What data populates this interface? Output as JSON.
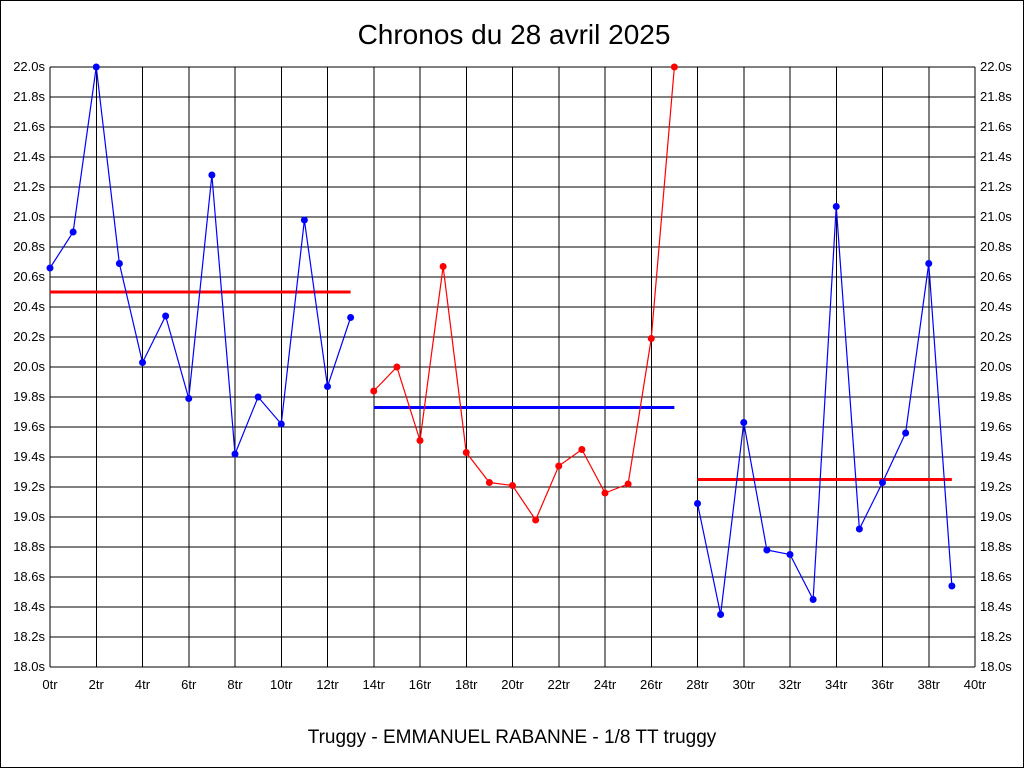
{
  "chart_data": {
    "type": "line",
    "title": "Chronos du 28 avril 2025",
    "subtitle": "Truggy - EMMANUEL RABANNE - 1/8 TT truggy",
    "xlabel": "",
    "ylabel": "",
    "xlim": [
      0,
      40
    ],
    "ylim": [
      18.0,
      22.0
    ],
    "grid": true,
    "x_ticks": [
      "0tr",
      "2tr",
      "4tr",
      "6tr",
      "8tr",
      "10tr",
      "12tr",
      "14tr",
      "16tr",
      "18tr",
      "20tr",
      "22tr",
      "24tr",
      "26tr",
      "28tr",
      "30tr",
      "32tr",
      "34tr",
      "36tr",
      "38tr",
      "40tr"
    ],
    "y_ticks": [
      "18.0s",
      "18.2s",
      "18.4s",
      "18.6s",
      "18.8s",
      "19.0s",
      "19.2s",
      "19.4s",
      "19.6s",
      "19.8s",
      "20.0s",
      "20.2s",
      "20.4s",
      "20.6s",
      "20.8s",
      "21.0s",
      "21.2s",
      "21.4s",
      "21.6s",
      "21.8s",
      "22.0s"
    ],
    "series": [
      {
        "color": "#0000ff",
        "x": [
          0,
          1,
          2,
          3,
          4,
          5,
          6,
          7,
          8,
          9,
          10,
          11,
          12,
          13
        ],
        "y": [
          20.66,
          20.9,
          22.0,
          20.69,
          20.03,
          20.34,
          19.79,
          21.28,
          19.42,
          19.8,
          19.62,
          20.98,
          19.87,
          20.33
        ]
      },
      {
        "color": "#ff0000",
        "x": [
          14,
          15,
          16,
          17,
          18,
          19,
          20,
          21,
          22,
          23,
          24,
          25,
          26,
          27
        ],
        "y": [
          19.84,
          20.0,
          19.51,
          20.67,
          19.43,
          19.23,
          19.21,
          18.98,
          19.34,
          19.45,
          19.16,
          19.22,
          20.19,
          22.0
        ]
      },
      {
        "color": "#0000ff",
        "x": [
          28,
          29,
          30,
          31,
          32,
          33,
          34,
          35,
          36,
          37,
          38,
          39
        ],
        "y": [
          19.09,
          18.35,
          19.63,
          18.78,
          18.75,
          18.45,
          21.07,
          18.92,
          19.23,
          19.56,
          20.69,
          18.54
        ]
      }
    ],
    "averages": [
      {
        "color": "#ff0000",
        "x_start": 0,
        "x_end": 13,
        "value": 20.5
      },
      {
        "color": "#0000ff",
        "x_start": 14,
        "x_end": 27,
        "value": 19.73
      },
      {
        "color": "#ff0000",
        "x_start": 28,
        "x_end": 39,
        "value": 19.25
      }
    ]
  }
}
